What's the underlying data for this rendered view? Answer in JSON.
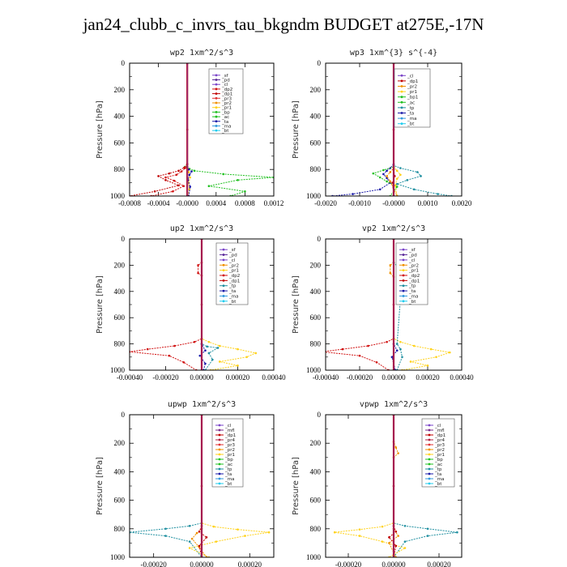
{
  "title": "jan24_clubb_c_invrs_tau_bkgndm  BUDGET at275E,-17N",
  "colors": {
    "_sf": "#7a44c8",
    "_pd": "#5b2a9a",
    "_cl": "#7a44c8",
    "_mfl": "#7a2a8a",
    "_dp2": "#d01010",
    "_dp1": "#c00000",
    "_pr4": "#b02040",
    "_pr3": "#e03030",
    "_pr2": "#f09000",
    "_pr1": "#ffd21a",
    "_bp": "#20c020",
    "_bp1": "#20c020",
    "_ac": "#20c020",
    "_tp": "#1f8fa0",
    "_ta": "#1a1aa8",
    "_ma": "#3399dd",
    "_bt": "#22ccee"
  },
  "chart_data": [
    {
      "type": "line",
      "title": "wp2  1xm^2/s^3",
      "ylabel": "Pressure [hPa]",
      "ylim": [
        1000,
        0
      ],
      "yticks": [
        "0",
        "200",
        "400",
        "600",
        "800",
        "1000"
      ],
      "xlim": [
        -0.0008,
        0.0012
      ],
      "xticks": [
        "-0.0008",
        "-0.0004",
        "-0.0000",
        "0.0004",
        "0.0008",
        "0.0012"
      ],
      "legend": [
        "_sf",
        "_pd",
        "_cl",
        "_dp2",
        "_dp1",
        "_pr3",
        "_pr2",
        "_pr1",
        "_bp",
        "_ac",
        "_ta",
        "_ma",
        "_bt"
      ],
      "series": [
        {
          "name": "_bp",
          "x": [
            0,
            0,
            -3e-05,
            3e-05,
            0.0001,
            0.0005,
            0.0012,
            0.0007,
            0.0003,
            0.0008,
            0.0006
          ],
          "y": [
            0,
            760,
            780,
            795,
            810,
            835,
            860,
            880,
            925,
            965,
            1000
          ]
        },
        {
          "name": "_dp1",
          "x": [
            0,
            0,
            -4e-05,
            -0.00012,
            -0.00025,
            -0.0004,
            -0.0003,
            -0.00012,
            -0.00045,
            -0.0008
          ],
          "y": [
            0,
            760,
            785,
            810,
            830,
            850,
            880,
            920,
            965,
            1000
          ]
        },
        {
          "name": "_dp2",
          "x": [
            0,
            0,
            -3e-05,
            -8e-05,
            -0.00015,
            -0.0003,
            -0.00018,
            -5e-05,
            -0.0002,
            -0.0005
          ],
          "y": [
            0,
            760,
            790,
            815,
            840,
            860,
            885,
            925,
            965,
            1000
          ]
        },
        {
          "name": "_pr1",
          "x": [
            0,
            0,
            2e-05,
            4e-05,
            2e-05,
            3e-05,
            1e-05
          ],
          "y": [
            0,
            790,
            820,
            860,
            900,
            950,
            1000
          ]
        },
        {
          "name": "_ta",
          "x": [
            0,
            0,
            2e-05,
            6e-05,
            3e-05,
            1e-05,
            4e-05,
            2e-05
          ],
          "y": [
            0,
            780,
            800,
            815,
            840,
            880,
            930,
            1000
          ]
        },
        {
          "name": "_cl",
          "x": [
            0,
            0,
            0
          ],
          "y": [
            0,
            500,
            1000
          ]
        }
      ]
    },
    {
      "type": "line",
      "title": "wp3  1xm^{3} s^{-4}",
      "ylabel": "Pressure [hPa]",
      "ylim": [
        1000,
        0
      ],
      "yticks": [
        "0",
        "200",
        "400",
        "600",
        "800",
        "1000"
      ],
      "xlim": [
        -0.002,
        0.002
      ],
      "xticks": [
        "-0.0020",
        "-0.0010",
        "-0.0000",
        "0.0010",
        "0.0020"
      ],
      "legend": [
        "_cl",
        "_dp1",
        "_pr2",
        "_pr1",
        "_bp1",
        "_ac",
        "_tp",
        "_ta",
        "_ma",
        "_bt"
      ],
      "series": [
        {
          "name": "_ta",
          "x": [
            0,
            0,
            -0.0001,
            -0.0002,
            -0.0003,
            -0.0002,
            -0.0001,
            -0.0004,
            -0.0012,
            -0.0018
          ],
          "y": [
            0,
            760,
            790,
            810,
            835,
            865,
            900,
            950,
            985,
            1000
          ]
        },
        {
          "name": "_tp",
          "x": [
            0,
            0,
            0.0002,
            0.0007,
            0.0008,
            0.0004,
            0.0001,
            0.0006,
            0.0013,
            0.0017
          ],
          "y": [
            0,
            770,
            790,
            820,
            850,
            880,
            910,
            950,
            985,
            1000
          ]
        },
        {
          "name": "_bp1",
          "x": [
            0,
            0,
            -0.0003,
            -0.0006,
            -0.0004,
            -0.0002,
            0.0001,
            -0.0001
          ],
          "y": [
            0,
            780,
            805,
            830,
            860,
            890,
            930,
            1000
          ]
        },
        {
          "name": "_pr1",
          "x": [
            0,
            0,
            0.0001,
            0.0002,
            0.0001,
            5e-05,
            0.0001
          ],
          "y": [
            0,
            780,
            810,
            840,
            870,
            920,
            1000
          ]
        },
        {
          "name": "_pr2",
          "x": [
            0,
            0,
            -0.0001,
            -0.0002,
            -0.0001,
            0.0001
          ],
          "y": [
            0,
            790,
            820,
            850,
            890,
            1000
          ]
        },
        {
          "name": "_dp1",
          "x": [
            0,
            0,
            3e-05,
            -3e-05,
            0
          ],
          "y": [
            0,
            800,
            850,
            900,
            1000
          ]
        },
        {
          "name": "_cl",
          "x": [
            0,
            0,
            0
          ],
          "y": [
            0,
            500,
            1000
          ]
        }
      ]
    },
    {
      "type": "line",
      "title": "up2  1xm^2/s^3",
      "ylabel": "Pressure [hPa]",
      "ylim": [
        1000,
        0
      ],
      "yticks": [
        "0",
        "200",
        "400",
        "600",
        "800",
        "1000"
      ],
      "xlim": [
        -0.0004,
        0.0004
      ],
      "xticks": [
        "-0.00040",
        "-0.00020",
        "0.00000",
        "0.00020",
        "0.00040"
      ],
      "legend": [
        "_sf",
        "_pd",
        "_cl",
        "_pr2",
        "_pr1",
        "_dp2",
        "_dp1",
        "_tp",
        "_ta",
        "_ma",
        "_bt"
      ],
      "series": [
        {
          "name": "_dp2",
          "x": [
            0,
            0,
            -2e-05,
            -2e-05,
            0,
            0,
            -4e-05,
            -0.00015,
            -0.0003,
            -0.0004,
            -0.00018,
            -0.0001,
            -3e-05
          ],
          "y": [
            0,
            180,
            200,
            260,
            280,
            760,
            785,
            815,
            840,
            860,
            890,
            940,
            1000
          ]
        },
        {
          "name": "_pr1",
          "x": [
            0,
            0,
            4e-05,
            0.0001,
            0.0002,
            0.0003,
            0.00025,
            0.0001,
            0.0002,
            5e-05
          ],
          "y": [
            0,
            760,
            785,
            815,
            840,
            870,
            900,
            935,
            965,
            1000
          ]
        },
        {
          "name": "_tp",
          "x": [
            0,
            0,
            3e-05,
            9e-05,
            4e-05,
            6e-05,
            2e-05
          ],
          "y": [
            0,
            800,
            820,
            830,
            870,
            920,
            1000
          ]
        },
        {
          "name": "_ta",
          "x": [
            0,
            0,
            2e-05,
            -1e-05,
            2e-05,
            1e-05
          ],
          "y": [
            0,
            800,
            850,
            890,
            950,
            1000
          ]
        },
        {
          "name": "_cl",
          "x": [
            0,
            0,
            0
          ],
          "y": [
            0,
            500,
            1000
          ]
        }
      ]
    },
    {
      "type": "line",
      "title": "vp2  1xm^2/s^3",
      "ylabel": "Pressure [hPa]",
      "ylim": [
        1000,
        0
      ],
      "yticks": [
        "0",
        "200",
        "400",
        "600",
        "800",
        "1000"
      ],
      "xlim": [
        -0.0004,
        0.0004
      ],
      "xticks": [
        "-0.00040",
        "-0.00020",
        "0.00000",
        "0.00020",
        "0.00040"
      ],
      "legend": [
        "_sf",
        "_pd",
        "_cl",
        "_pr2",
        "_pr1",
        "_dp2",
        "_dp1",
        "_tp",
        "_ta",
        "_ma",
        "_bt"
      ],
      "series": [
        {
          "name": "_dp2",
          "x": [
            0,
            0,
            -4e-05,
            -0.00015,
            -0.0003,
            -0.00042,
            -0.0002,
            -0.0001,
            -3e-05
          ],
          "y": [
            0,
            760,
            785,
            815,
            840,
            860,
            890,
            940,
            1000
          ]
        },
        {
          "name": "_pr1",
          "x": [
            0,
            0,
            4e-05,
            0.00012,
            0.00022,
            0.00033,
            0.00025,
            0.0001,
            0.0002,
            5e-05
          ],
          "y": [
            0,
            760,
            785,
            815,
            840,
            865,
            900,
            935,
            965,
            1000
          ]
        },
        {
          "name": "_pr2",
          "x": [
            0,
            0,
            -2e-05,
            -2e-05,
            0
          ],
          "y": [
            0,
            180,
            200,
            260,
            290
          ]
        },
        {
          "name": "_tp",
          "x": [
            0,
            0,
            3e-05,
            5e-05,
            2e-05,
            4e-05,
            5e-05,
            2e-05
          ],
          "y": [
            0,
            180,
            220,
            280,
            800,
            840,
            900,
            1000
          ]
        },
        {
          "name": "_ta",
          "x": [
            0,
            0,
            2e-05,
            -1e-05,
            1e-05
          ],
          "y": [
            0,
            800,
            850,
            900,
            1000
          ]
        },
        {
          "name": "_cl",
          "x": [
            0,
            0,
            0
          ],
          "y": [
            0,
            500,
            1000
          ]
        }
      ]
    },
    {
      "type": "line",
      "title": "upwp  1xm^2/s^3",
      "ylabel": "Pressure [hPa]",
      "ylim": [
        1000,
        0
      ],
      "yticks": [
        "0",
        "200",
        "400",
        "600",
        "800",
        "1000"
      ],
      "xlim": [
        -0.0003,
        0.0003
      ],
      "xticks": [
        "-0.00020",
        "0.00000",
        "0.00020"
      ],
      "legend": [
        "_cl",
        "_mfl",
        "_dp1",
        "_pr4",
        "_pr3",
        "_pr2",
        "_pr1",
        "_bp",
        "_ac",
        "_tp",
        "_ta",
        "_ma",
        "_bt"
      ],
      "series": [
        {
          "name": "_tp",
          "x": [
            0,
            0,
            -5e-05,
            -0.00015,
            -0.0003,
            -0.00015,
            -5e-05,
            0
          ],
          "y": [
            0,
            760,
            780,
            800,
            825,
            850,
            890,
            1000
          ]
        },
        {
          "name": "_pr1",
          "x": [
            0,
            0,
            5e-05,
            0.00015,
            0.00028,
            0.00018,
            6e-05,
            -5e-05,
            3e-05
          ],
          "y": [
            0,
            760,
            785,
            805,
            825,
            850,
            890,
            935,
            1000
          ]
        },
        {
          "name": "_pr2",
          "x": [
            0,
            0,
            -2e-05,
            -4e-05,
            -1e-05,
            2e-05
          ],
          "y": [
            0,
            800,
            830,
            870,
            930,
            1000
          ]
        },
        {
          "name": "_dp1",
          "x": [
            0,
            0,
            -1e-05,
            2e-05,
            -1e-05,
            0
          ],
          "y": [
            0,
            780,
            820,
            860,
            920,
            1000
          ]
        },
        {
          "name": "_cl",
          "x": [
            0,
            0,
            0
          ],
          "y": [
            0,
            500,
            1000
          ]
        }
      ]
    },
    {
      "type": "line",
      "title": "vpwp  1xm^2/s^3",
      "ylabel": "Pressure [hPa]",
      "ylim": [
        1000,
        0
      ],
      "yticks": [
        "0",
        "200",
        "400",
        "600",
        "800",
        "1000"
      ],
      "xlim": [
        -0.0003,
        0.0003
      ],
      "xticks": [
        "-0.00020",
        "0.00000",
        "0.00020"
      ],
      "legend": [
        "_cl",
        "_mfl",
        "_dp1",
        "_pr4",
        "_pr3",
        "_pr2",
        "_pr1",
        "_bp",
        "_ac",
        "_tp",
        "_ta",
        "_ma",
        "_bt"
      ],
      "series": [
        {
          "name": "_tp",
          "x": [
            0,
            0,
            5e-05,
            0.00015,
            0.00028,
            0.00015,
            5e-05,
            0
          ],
          "y": [
            0,
            760,
            780,
            800,
            825,
            850,
            890,
            1000
          ]
        },
        {
          "name": "_pr1",
          "x": [
            0,
            0,
            -5e-05,
            -0.00015,
            -0.00026,
            -0.00015,
            -5e-05,
            5e-05,
            -2e-05
          ],
          "y": [
            0,
            760,
            785,
            805,
            825,
            850,
            890,
            935,
            1000
          ]
        },
        {
          "name": "_pr2",
          "x": [
            0,
            0,
            1e-05,
            2e-05,
            0,
            0,
            2e-05,
            -2e-05,
            1e-05
          ],
          "y": [
            0,
            190,
            230,
            270,
            300,
            800,
            850,
            900,
            1000
          ]
        },
        {
          "name": "_dp1",
          "x": [
            0,
            0,
            1e-05,
            -2e-05,
            1e-05,
            0
          ],
          "y": [
            0,
            780,
            820,
            860,
            920,
            1000
          ]
        },
        {
          "name": "_cl",
          "x": [
            0,
            0,
            0
          ],
          "y": [
            0,
            500,
            1000
          ]
        }
      ]
    }
  ]
}
